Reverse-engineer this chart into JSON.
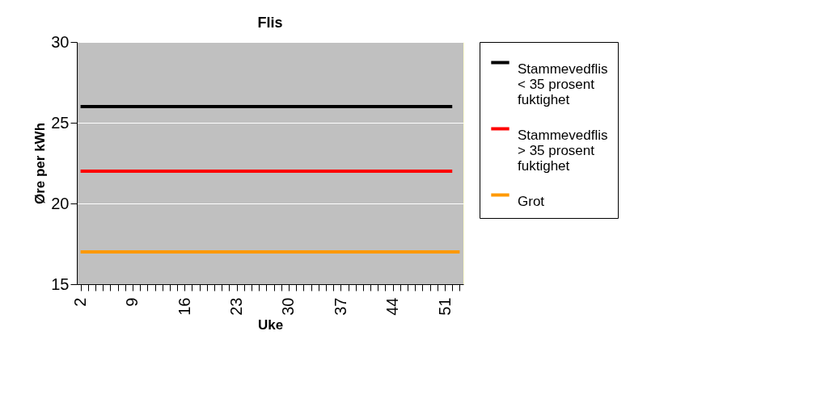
{
  "chart_data": {
    "type": "line",
    "title": "Flis",
    "xlabel": "Uke",
    "ylabel": "Øre per kWh",
    "categories": [
      "2",
      null,
      null,
      null,
      null,
      null,
      null,
      "9",
      null,
      null,
      null,
      null,
      null,
      null,
      "16",
      null,
      null,
      null,
      null,
      null,
      null,
      "23",
      null,
      null,
      null,
      null,
      null,
      null,
      "30",
      null,
      null,
      null,
      null,
      null,
      null,
      "37",
      null,
      null,
      null,
      null,
      null,
      null,
      "44",
      null,
      null,
      null,
      null,
      null,
      null,
      "51",
      null,
      null
    ],
    "series": [
      {
        "name": "Stammevedflis < 35 prosent fuktighet",
        "color": "#000000",
        "values": [
          26,
          26,
          26,
          26,
          26,
          26,
          26,
          26,
          26,
          26,
          26,
          26,
          26,
          26,
          26,
          26,
          26,
          26,
          26,
          26,
          26,
          26,
          26,
          26,
          26,
          26,
          26,
          26,
          26,
          26,
          26,
          26,
          26,
          26,
          26,
          26,
          26,
          26,
          26,
          26,
          26,
          26,
          26,
          26,
          26,
          26,
          26,
          26,
          26,
          26,
          26,
          null
        ]
      },
      {
        "name": "Stammevedflis > 35 prosent fuktighet",
        "color": "#ff0000",
        "values": [
          22,
          22,
          22,
          22,
          22,
          22,
          22,
          22,
          22,
          22,
          22,
          22,
          22,
          22,
          22,
          22,
          22,
          22,
          22,
          22,
          22,
          22,
          22,
          22,
          22,
          22,
          22,
          22,
          22,
          22,
          22,
          22,
          22,
          22,
          22,
          22,
          22,
          22,
          22,
          22,
          22,
          22,
          22,
          22,
          22,
          22,
          22,
          22,
          22,
          22,
          22,
          null
        ]
      },
      {
        "name": "Grot",
        "color": "#ff9900",
        "values": [
          17,
          17,
          17,
          17,
          17,
          17,
          17,
          17,
          17,
          17,
          17,
          17,
          17,
          17,
          17,
          17,
          17,
          17,
          17,
          17,
          17,
          17,
          17,
          17,
          17,
          17,
          17,
          17,
          17,
          17,
          17,
          17,
          17,
          17,
          17,
          17,
          17,
          17,
          17,
          17,
          17,
          17,
          17,
          17,
          17,
          17,
          17,
          17,
          17,
          17,
          17,
          17
        ]
      }
    ],
    "ylim": [
      15,
      30
    ],
    "yticks": [
      15,
      20,
      25,
      30
    ],
    "grid": "y",
    "legend": "right",
    "marker": "none",
    "line_style": "solid"
  }
}
